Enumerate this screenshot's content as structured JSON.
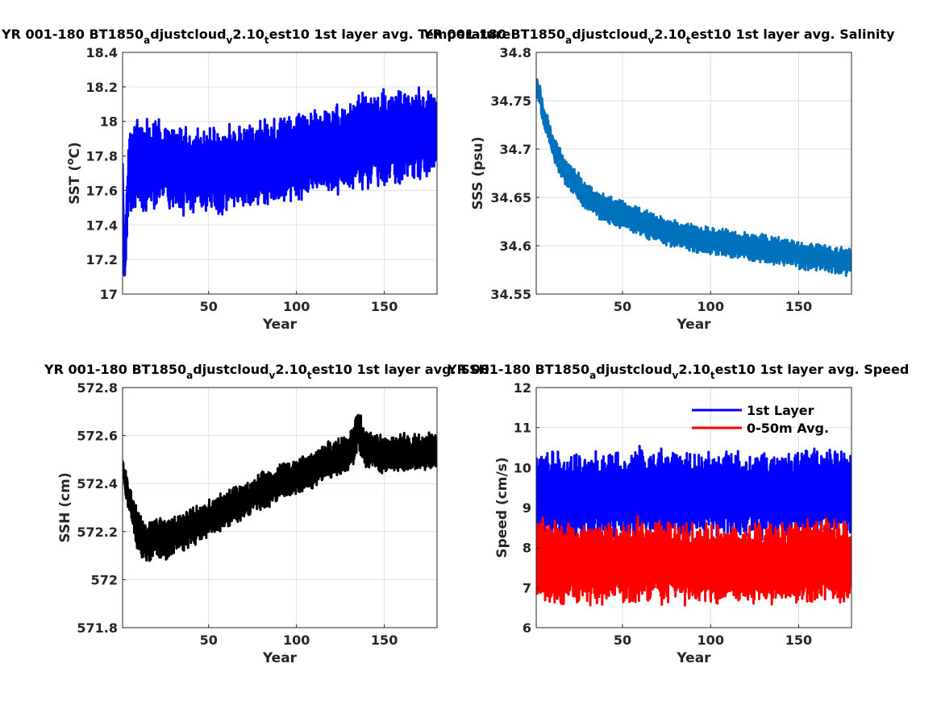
{
  "chart_data": [
    {
      "type": "line",
      "title_parts": [
        "YR 001-180 BT1850",
        "a",
        "djustcloud",
        "v",
        "2.10",
        "t",
        "est10 1st layer avg. Temperature"
      ],
      "xlabel": "Year",
      "ylabel": "SST (",
      "ylabel_sup": "o",
      "ylabel_end": "C)",
      "xlim": [
        1,
        180
      ],
      "ylim": [
        17,
        18.4
      ],
      "xticks": [
        50,
        100,
        150
      ],
      "yticks": [
        17,
        17.2,
        17.4,
        17.6,
        17.8,
        18,
        18.2,
        18.4
      ],
      "ytick_labels": [
        "17",
        "17.2",
        "17.4",
        "17.6",
        "17.8",
        "18",
        "18.2",
        "18.4"
      ],
      "grid": true,
      "series": [
        {
          "color": "#0000ff",
          "stroke_width": 3,
          "x": [
            1,
            2,
            3,
            4,
            5,
            10,
            20,
            30,
            40,
            50,
            60,
            70,
            80,
            90,
            100,
            110,
            120,
            130,
            140,
            150,
            160,
            170,
            180
          ],
          "y": [
            17.75,
            17.1,
            17.35,
            17.6,
            17.72,
            17.75,
            17.74,
            17.73,
            17.72,
            17.72,
            17.73,
            17.74,
            17.76,
            17.77,
            17.8,
            17.82,
            17.84,
            17.86,
            17.9,
            17.9,
            17.92,
            17.93,
            17.93
          ],
          "spread": [
            0.02,
            0.03,
            0.2,
            0.2,
            0.26,
            0.26,
            0.26,
            0.26,
            0.26,
            0.26,
            0.26,
            0.26,
            0.26,
            0.26,
            0.26,
            0.26,
            0.27,
            0.28,
            0.28,
            0.28,
            0.28,
            0.27,
            0.25
          ]
        }
      ]
    },
    {
      "type": "line",
      "title_parts": [
        "YR 001-180 BT1850",
        "a",
        "djustcloud",
        "v",
        "2.10",
        "t",
        "est10 1st layer avg. Salinity"
      ],
      "xlabel": "Year",
      "ylabel": "SSS (psu)",
      "xlim": [
        1,
        180
      ],
      "ylim": [
        34.55,
        34.8
      ],
      "xticks": [
        50,
        100,
        150
      ],
      "yticks": [
        34.55,
        34.6,
        34.65,
        34.7,
        34.75,
        34.8
      ],
      "ytick_labels": [
        "34.55",
        "34.6",
        "34.65",
        "34.7",
        "34.75",
        "34.8"
      ],
      "grid": true,
      "series": [
        {
          "color": "#0072bd",
          "stroke_width": 3,
          "x": [
            1,
            3,
            5,
            8,
            10,
            15,
            20,
            25,
            30,
            40,
            50,
            60,
            70,
            80,
            90,
            100,
            110,
            120,
            130,
            140,
            150,
            160,
            170,
            180
          ],
          "y": [
            34.765,
            34.755,
            34.735,
            34.72,
            34.705,
            34.685,
            34.67,
            34.66,
            34.65,
            34.638,
            34.632,
            34.625,
            34.618,
            34.612,
            34.608,
            34.605,
            34.603,
            34.6,
            34.597,
            34.595,
            34.59,
            34.588,
            34.585,
            34.583
          ],
          "spread": [
            0.012,
            0.012,
            0.012,
            0.012,
            0.012,
            0.014,
            0.014,
            0.015,
            0.015,
            0.015,
            0.015,
            0.015,
            0.015,
            0.015,
            0.015,
            0.015,
            0.015,
            0.015,
            0.015,
            0.015,
            0.015,
            0.015,
            0.015,
            0.015
          ]
        }
      ]
    },
    {
      "type": "line",
      "title_parts": [
        "YR 001-180 BT1850",
        "a",
        "djustcloud",
        "v",
        "2.10",
        "t",
        "est10 1st layer avg. SSH"
      ],
      "xlabel": "Year",
      "ylabel": "SSH (cm)",
      "xlim": [
        1,
        180
      ],
      "ylim": [
        571.8,
        572.8
      ],
      "xticks": [
        50,
        100,
        150
      ],
      "yticks": [
        571.8,
        572,
        572.2,
        572.4,
        572.6,
        572.8
      ],
      "ytick_labels": [
        "571.8",
        "572",
        "572.2",
        "572.4",
        "572.6",
        "572.8"
      ],
      "grid": true,
      "series": [
        {
          "color": "#000000",
          "stroke_width": 3,
          "x": [
            1,
            3,
            6,
            10,
            15,
            20,
            25,
            30,
            40,
            50,
            60,
            70,
            80,
            90,
            100,
            110,
            120,
            130,
            135,
            140,
            150,
            160,
            170,
            180
          ],
          "y": [
            572.48,
            572.38,
            572.3,
            572.2,
            572.15,
            572.18,
            572.16,
            572.18,
            572.22,
            572.25,
            572.29,
            572.33,
            572.37,
            572.4,
            572.43,
            572.46,
            572.5,
            572.52,
            572.62,
            572.54,
            572.52,
            572.53,
            572.53,
            572.54
          ],
          "spread": [
            0.02,
            0.07,
            0.08,
            0.09,
            0.09,
            0.09,
            0.09,
            0.09,
            0.08,
            0.08,
            0.08,
            0.08,
            0.08,
            0.08,
            0.08,
            0.08,
            0.08,
            0.08,
            0.1,
            0.08,
            0.08,
            0.08,
            0.08,
            0.08
          ]
        }
      ]
    },
    {
      "type": "line",
      "title_parts": [
        "YR 001-180 BT1850",
        "a",
        "djustcloud",
        "v",
        "2.10",
        "t",
        "est10 1st layer avg. Speed"
      ],
      "xlabel": "Year",
      "ylabel": "Speed (cm/s)",
      "xlim": [
        1,
        180
      ],
      "ylim": [
        6,
        12
      ],
      "xticks": [
        50,
        100,
        150
      ],
      "yticks": [
        6,
        7,
        8,
        9,
        10,
        11,
        12
      ],
      "ytick_labels": [
        "6",
        "7",
        "8",
        "9",
        "10",
        "11",
        "12"
      ],
      "grid": true,
      "legend_position": "top-right",
      "series": [
        {
          "name": "1st Layer",
          "color": "#0000ff",
          "stroke_width": 3,
          "x": [
            1,
            10,
            30,
            50,
            60,
            80,
            100,
            120,
            140,
            160,
            180
          ],
          "y": [
            9.2,
            9.3,
            9.3,
            9.3,
            9.4,
            9.3,
            9.3,
            9.3,
            9.3,
            9.4,
            9.3
          ],
          "spread": [
            1.2,
            1.1,
            1.1,
            1.1,
            1.2,
            1.1,
            1.1,
            1.1,
            1.1,
            1.1,
            1.1
          ]
        },
        {
          "name": "0-50m Avg.",
          "color": "#ff0000",
          "stroke_width": 3,
          "x": [
            1,
            10,
            30,
            50,
            60,
            80,
            100,
            120,
            140,
            160,
            180
          ],
          "y": [
            7.7,
            7.6,
            7.6,
            7.6,
            7.7,
            7.6,
            7.6,
            7.6,
            7.6,
            7.7,
            7.6
          ],
          "spread": [
            1.1,
            1.1,
            1.0,
            1.0,
            1.1,
            1.0,
            1.0,
            1.0,
            1.0,
            1.1,
            1.0
          ]
        }
      ]
    }
  ]
}
